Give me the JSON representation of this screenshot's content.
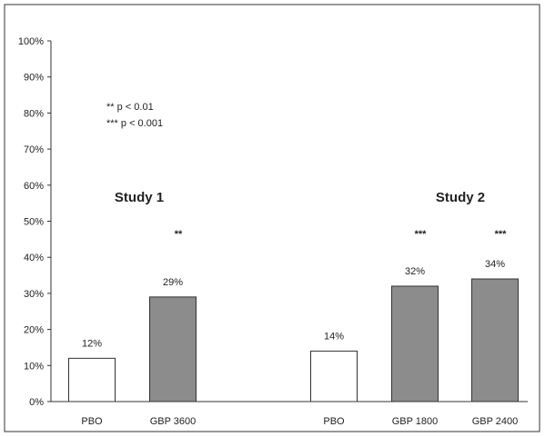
{
  "chart_data": {
    "type": "bar",
    "ylim": [
      0,
      100
    ],
    "y_ticks": [
      "0%",
      "10%",
      "20%",
      "30%",
      "40%",
      "50%",
      "60%",
      "70%",
      "80%",
      "90%",
      "100%"
    ],
    "y_tick_values": [
      0,
      10,
      20,
      30,
      40,
      50,
      60,
      70,
      80,
      90,
      100
    ],
    "grid": false,
    "legend_text": [
      "** p < 0.01",
      "*** p < 0.001"
    ],
    "groups": [
      {
        "label": "Study 1",
        "bars": [
          {
            "category": "PBO",
            "value": 12,
            "value_label": "12%",
            "sig": "",
            "color": "#ffffff"
          },
          {
            "category": "GBP 3600",
            "value": 29,
            "value_label": "29%",
            "sig": "**",
            "color": "#8c8c8c"
          }
        ]
      },
      {
        "label": "Study 2",
        "bars": [
          {
            "category": "PBO",
            "value": 14,
            "value_label": "14%",
            "sig": "",
            "color": "#ffffff"
          },
          {
            "category": "GBP 1800",
            "value": 32,
            "value_label": "32%",
            "sig": "***",
            "color": "#8c8c8c"
          },
          {
            "category": "GBP 2400",
            "value": 34,
            "value_label": "34%",
            "sig": "***",
            "color": "#8c8c8c"
          }
        ]
      }
    ]
  }
}
